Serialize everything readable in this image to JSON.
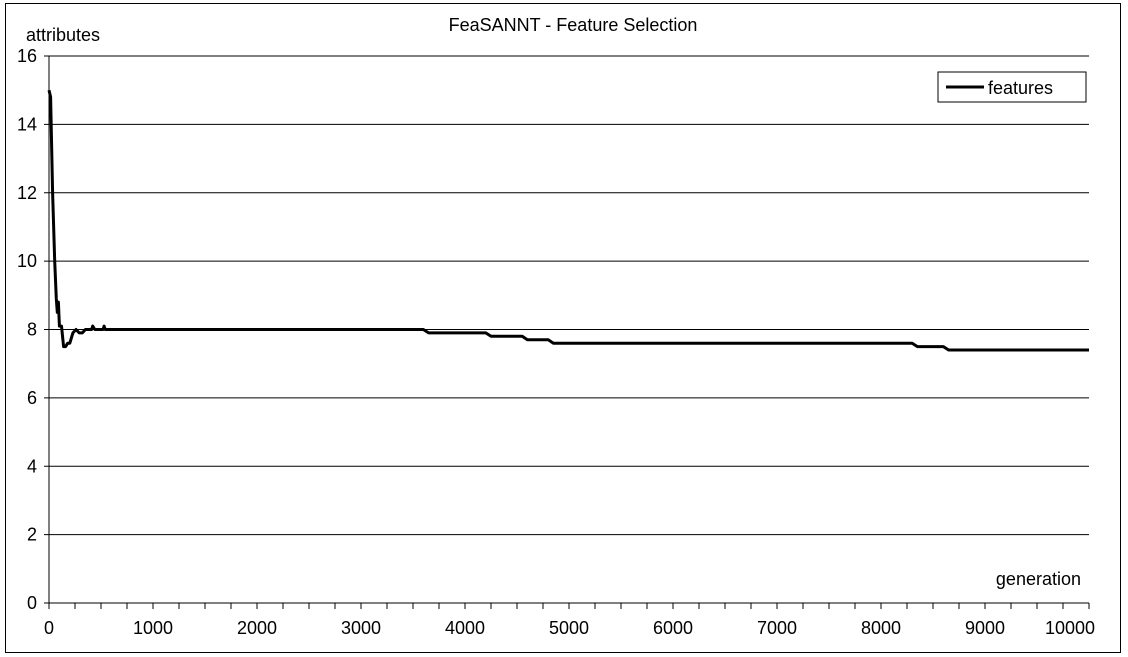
{
  "chart_data": {
    "type": "line",
    "title": "FeaSANNT - Feature Selection",
    "xlabel": "generation",
    "ylabel": "attributes",
    "xlim": [
      0,
      10000
    ],
    "ylim": [
      0,
      16
    ],
    "x_ticks": [
      0,
      1000,
      2000,
      3000,
      4000,
      5000,
      6000,
      7000,
      8000,
      9000,
      10000
    ],
    "x_minor_step": 250,
    "y_ticks": [
      0,
      2,
      4,
      6,
      8,
      10,
      12,
      14,
      16
    ],
    "grid": "horizontal",
    "legend_position": "top-right",
    "series": [
      {
        "name": "features",
        "color": "#000000",
        "x": [
          0,
          15,
          35,
          55,
          70,
          80,
          90,
          100,
          120,
          140,
          160,
          180,
          200,
          230,
          260,
          290,
          320,
          350,
          380,
          410,
          420,
          440,
          460,
          500,
          520,
          530,
          540,
          550,
          600,
          800,
          1000,
          2000,
          3000,
          3600,
          3650,
          4000,
          4200,
          4250,
          4550,
          4600,
          4800,
          4850,
          5500,
          6000,
          7000,
          8000,
          8300,
          8350,
          8600,
          8650,
          9000,
          10000
        ],
        "y": [
          15,
          14.8,
          12,
          10,
          8.9,
          8.5,
          8.8,
          8.1,
          8.1,
          7.5,
          7.5,
          7.6,
          7.6,
          7.9,
          8,
          7.9,
          7.9,
          8,
          8,
          8,
          8.1,
          8,
          8,
          8,
          8,
          8.1,
          8,
          8,
          8,
          8,
          8,
          8,
          8,
          8,
          7.9,
          7.9,
          7.9,
          7.8,
          7.8,
          7.7,
          7.7,
          7.6,
          7.6,
          7.6,
          7.6,
          7.6,
          7.6,
          7.5,
          7.5,
          7.4,
          7.4,
          7.4
        ]
      }
    ]
  }
}
